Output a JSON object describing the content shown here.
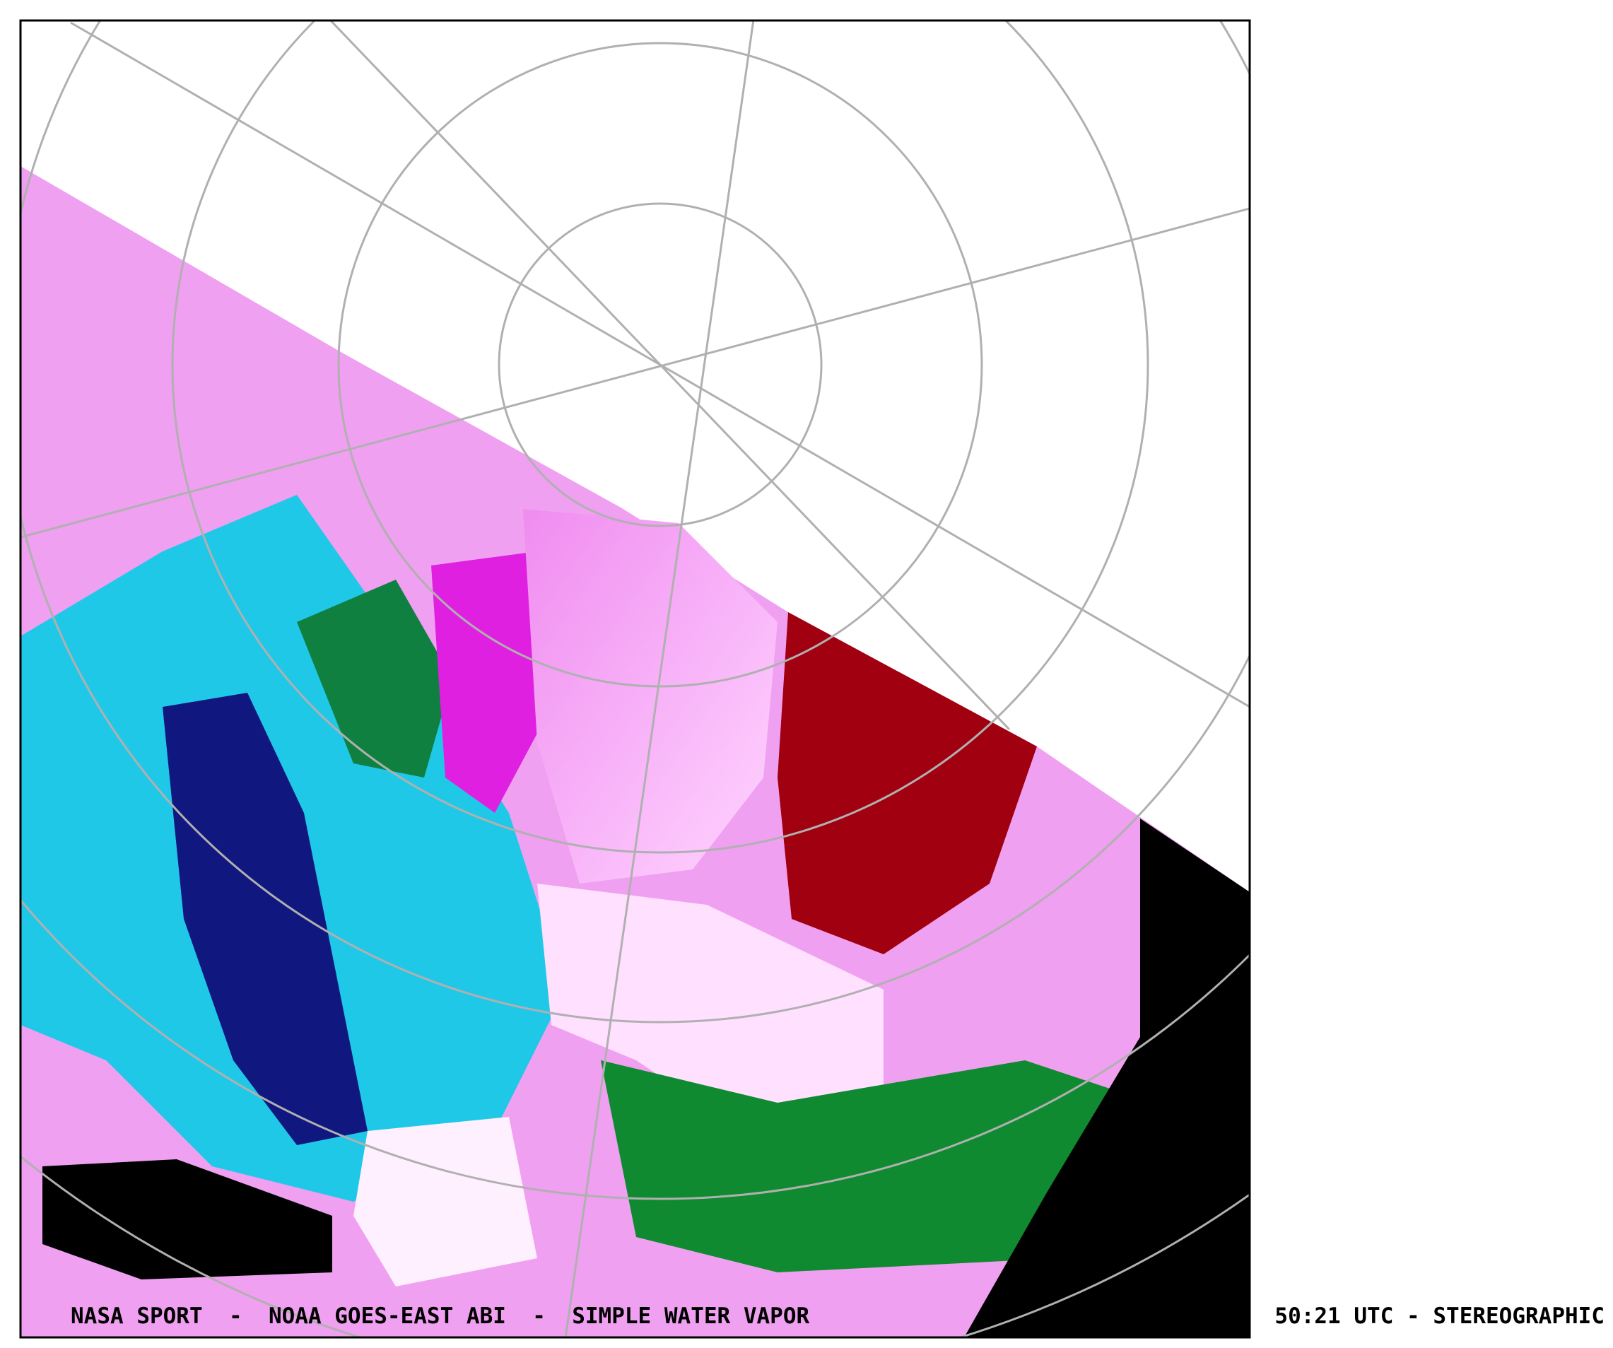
{
  "caption": {
    "left": "NASA SPORT  -  NOAA GOES-EAST ABI  -  SIMPLE WATER VAPOR",
    "right": "50:21 UTC - STEREOGRAPHIC"
  }
}
